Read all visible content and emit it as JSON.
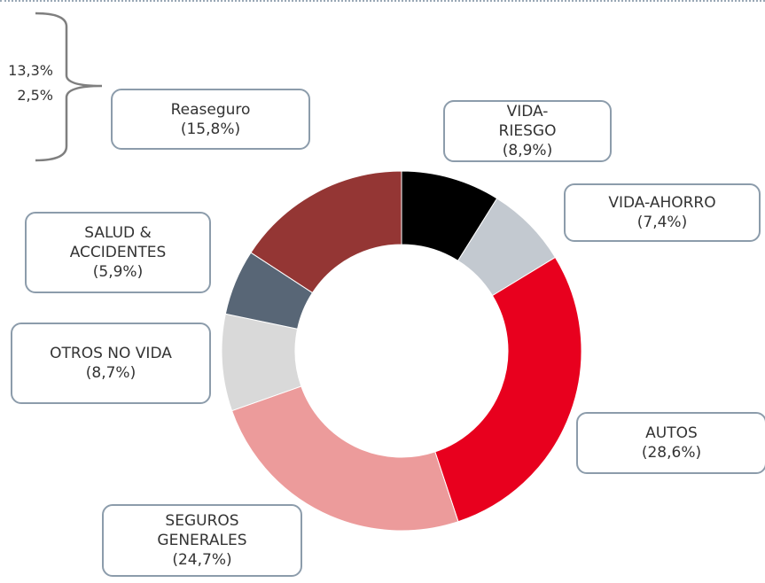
{
  "chart_data": {
    "type": "pie",
    "categories": [
      "VIDA-RIESGO",
      "VIDA-AHORRO",
      "AUTOS",
      "SEGUROS GENERALES",
      "OTROS NO VIDA",
      "SALUD & ACCIDENTES",
      "Reaseguro"
    ],
    "values": [
      8.9,
      7.4,
      28.6,
      24.7,
      8.7,
      5.9,
      15.8
    ],
    "value_labels": [
      "(8,9%)",
      "(7,4%)",
      "(28,6%)",
      "(24,7%)",
      "(8,7%)",
      "(5,9%)",
      "(15,8%)"
    ],
    "colors": [
      "#000000",
      "#c3c9d0",
      "#e8001e",
      "#ec9b9b",
      "#d9d9d9",
      "#586676",
      "#943634"
    ],
    "annotations": [
      "13,3%",
      "2,5%"
    ]
  }
}
